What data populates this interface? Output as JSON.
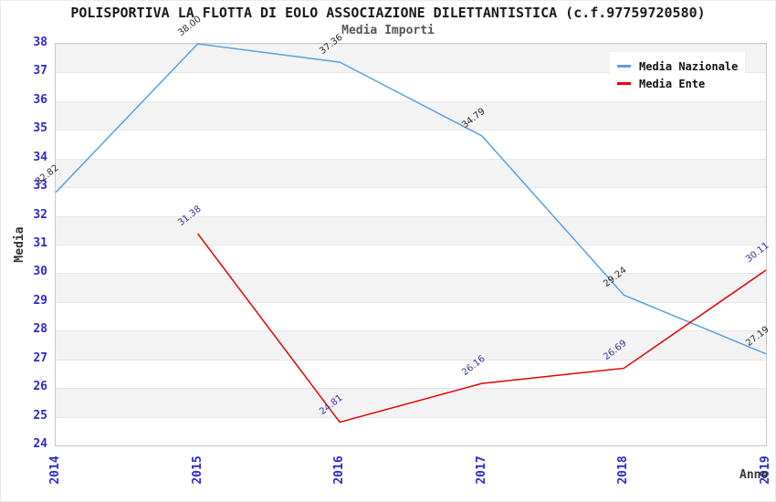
{
  "chart_data": {
    "type": "line",
    "title": "POLISPORTIVA LA FLOTTA DI EOLO ASSOCIAZIONE DILETTANTISTICA (c.f.97759720580)",
    "subtitle": "Media Importi",
    "xlabel": "Anno",
    "ylabel": "Media",
    "x": [
      "2014",
      "2015",
      "2016",
      "2017",
      "2018",
      "2019"
    ],
    "ylim": [
      24,
      38
    ],
    "ytick_step": 1,
    "grid": "alternating-horizontal-bands",
    "legend_position": "top-right",
    "series": [
      {
        "name": "Media Nazionale",
        "color": "#5C9FDF",
        "label_color": "#2b2b2b",
        "values": [
          32.82,
          38.0,
          37.36,
          34.79,
          29.24,
          27.19
        ]
      },
      {
        "name": "Media Ente",
        "color": "#E60000",
        "label_color": "#333399",
        "values": [
          null,
          31.38,
          24.81,
          26.16,
          26.69,
          30.11
        ]
      }
    ]
  },
  "styles": {
    "tick_color": "#2A2ACE",
    "band_gray": "#F3F3F3",
    "band_white": "#FFFFFF",
    "gridline_color": "#E6E6E6",
    "plot_border_color": "#C8C8C8",
    "title_color": "#1A1A1A",
    "subtitle_color": "#555555",
    "axis_title_color": "#333333"
  }
}
